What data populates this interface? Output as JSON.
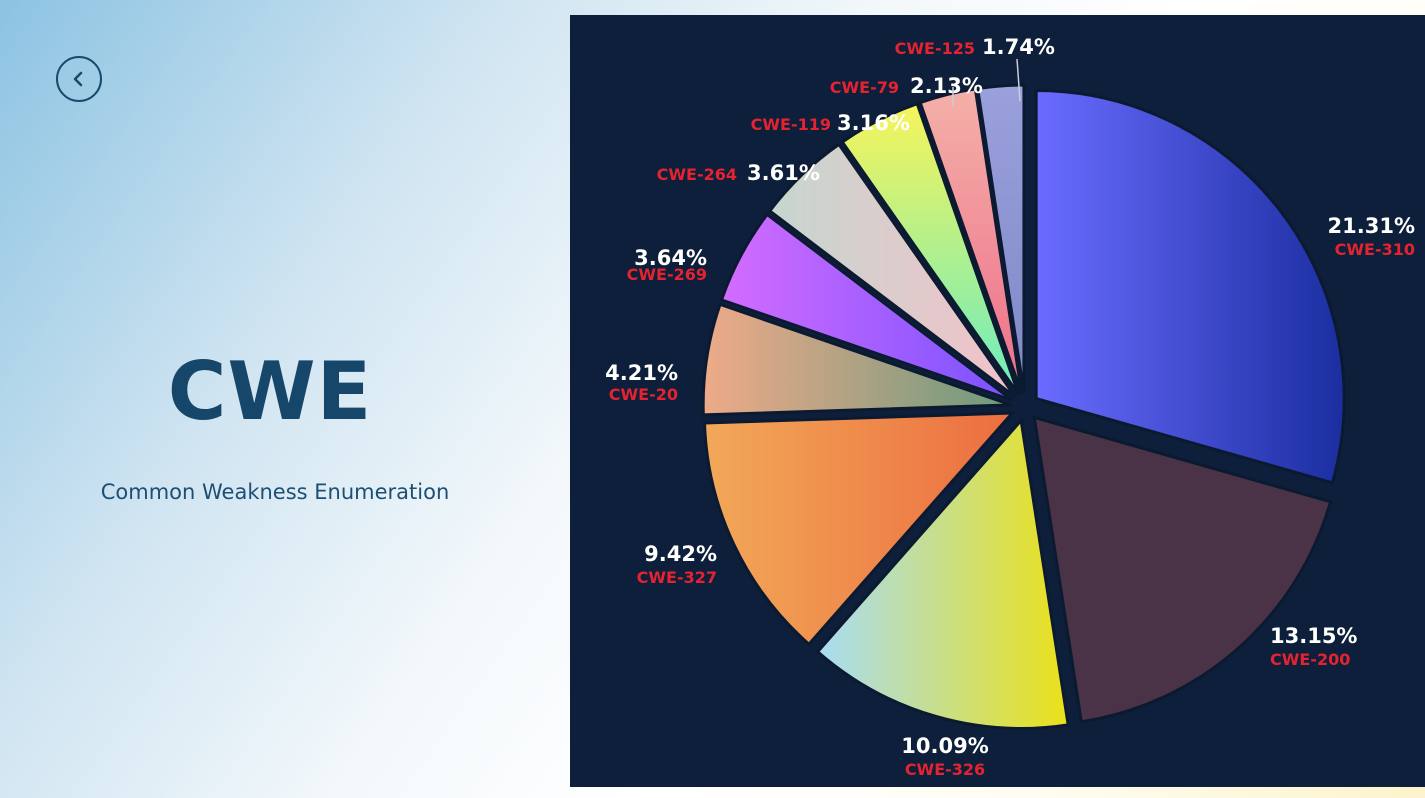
{
  "page": {
    "title": "CWE",
    "subtitle": "Common Weakness Enumeration"
  },
  "chart_data": {
    "type": "pie",
    "start_angle_deg": 0,
    "slices": [
      {
        "label": "CWE-310",
        "value": 21.31,
        "value_label": "21.31%",
        "colors": [
          "#6a6cff",
          "#1a2ea0"
        ],
        "offset": 14,
        "direction": "horizontal"
      },
      {
        "label": "CWE-200",
        "value": 13.15,
        "value_label": "13.15%",
        "colors": [
          "#4a3247",
          "#4a3247"
        ],
        "offset": 14,
        "direction": "horizontal"
      },
      {
        "label": "CWE-326",
        "value": 10.09,
        "value_label": "10.09%",
        "colors": [
          "#a8dcf5",
          "#eae118"
        ],
        "offset": 14,
        "direction": "horizontal"
      },
      {
        "label": "CWE-327",
        "value": 9.42,
        "value_label": "9.42%",
        "colors": [
          "#f2a858",
          "#ec6e40"
        ],
        "offset": 14,
        "direction": "horizontal"
      },
      {
        "label": "CWE-20",
        "value": 4.21,
        "value_label": "4.21%",
        "colors": [
          "#eeaa88",
          "#6c9a7e"
        ],
        "offset": 14,
        "direction": "horizontal"
      },
      {
        "label": "CWE-269",
        "value": 3.64,
        "value_label": "3.64%",
        "colors": [
          "#d36cff",
          "#7a52ff"
        ],
        "offset": 14,
        "direction": "horizontal"
      },
      {
        "label": "CWE-264",
        "value": 3.61,
        "value_label": "3.61%",
        "colors": [
          "#c6d6cf",
          "#f2c2c9"
        ],
        "offset": 14,
        "direction": "horizontal"
      },
      {
        "label": "CWE-119",
        "value": 3.16,
        "value_label": "3.16%",
        "colors": [
          "#f7f45a",
          "#6cecc0"
        ],
        "offset": 14,
        "direction": "vertical"
      },
      {
        "label": "CWE-79",
        "value": 2.13,
        "value_label": "2.13%",
        "colors": [
          "#f4b0a8",
          "#ee6f8a"
        ],
        "offset": 14,
        "direction": "vertical"
      },
      {
        "label": "CWE-125",
        "value": 1.74,
        "value_label": "1.74%",
        "colors": [
          "#9aa0dc",
          "#8088c8"
        ],
        "offset": 14,
        "direction": "vertical"
      }
    ]
  }
}
